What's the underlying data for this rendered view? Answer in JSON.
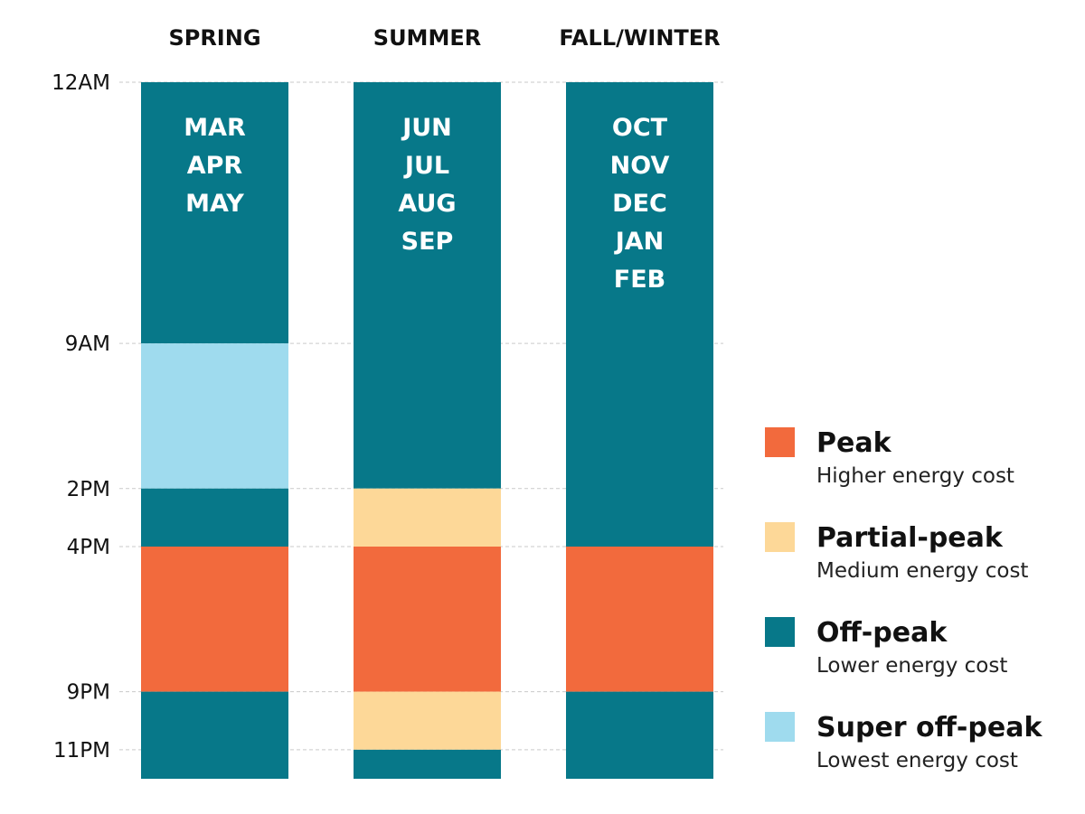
{
  "colors": {
    "peak": "#F26A3D",
    "partial": "#FDD898",
    "off": "#077889",
    "super": "#9FDBEE"
  },
  "time_axis": {
    "ticks": [
      {
        "label": "12AM",
        "hour": 0
      },
      {
        "label": "9AM",
        "hour": 9
      },
      {
        "label": "2PM",
        "hour": 14
      },
      {
        "label": "4PM",
        "hour": 16
      },
      {
        "label": "9PM",
        "hour": 21
      },
      {
        "label": "11PM",
        "hour": 23
      }
    ],
    "range_hours": [
      0,
      24
    ]
  },
  "seasons": [
    {
      "title": "SPRING",
      "months": [
        "MAR",
        "APR",
        "MAY"
      ],
      "periods": [
        {
          "start": 0,
          "end": 9,
          "type": "off"
        },
        {
          "start": 9,
          "end": 14,
          "type": "super"
        },
        {
          "start": 14,
          "end": 16,
          "type": "off"
        },
        {
          "start": 16,
          "end": 21,
          "type": "peak"
        },
        {
          "start": 21,
          "end": 24,
          "type": "off"
        }
      ]
    },
    {
      "title": "SUMMER",
      "months": [
        "JUN",
        "JUL",
        "AUG",
        "SEP"
      ],
      "periods": [
        {
          "start": 0,
          "end": 14,
          "type": "off"
        },
        {
          "start": 14,
          "end": 16,
          "type": "partial"
        },
        {
          "start": 16,
          "end": 21,
          "type": "peak"
        },
        {
          "start": 21,
          "end": 23,
          "type": "partial"
        },
        {
          "start": 23,
          "end": 24,
          "type": "off"
        }
      ]
    },
    {
      "title": "FALL/WINTER",
      "months": [
        "OCT",
        "NOV",
        "DEC",
        "JAN",
        "FEB"
      ],
      "periods": [
        {
          "start": 0,
          "end": 16,
          "type": "off"
        },
        {
          "start": 16,
          "end": 21,
          "type": "peak"
        },
        {
          "start": 21,
          "end": 24,
          "type": "off"
        }
      ]
    }
  ],
  "legend": [
    {
      "type": "peak",
      "name": "Peak",
      "desc": "Higher energy cost"
    },
    {
      "type": "partial",
      "name": "Partial-peak",
      "desc": "Medium energy cost"
    },
    {
      "type": "off",
      "name": "Off-peak",
      "desc": "Lower energy cost"
    },
    {
      "type": "super",
      "name": "Super off-peak",
      "desc": "Lowest energy cost"
    }
  ]
}
